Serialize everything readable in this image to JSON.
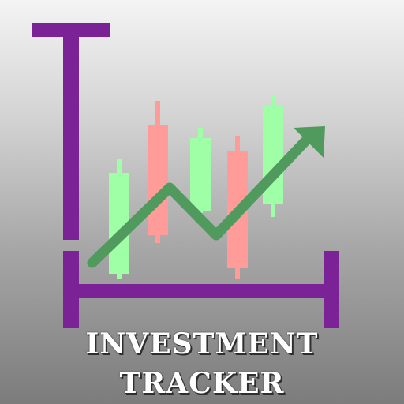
{
  "title": {
    "line1": "INVESTMENT",
    "line2": "TRACKER"
  },
  "colors": {
    "axis": "#7b2296",
    "candle_up": "#9effa6",
    "candle_down": "#ff9c99",
    "arrow": "#519a5e",
    "text": "#ffffff"
  },
  "candles": [
    {
      "direction": "up"
    },
    {
      "direction": "down"
    },
    {
      "direction": "up"
    },
    {
      "direction": "down"
    },
    {
      "direction": "up"
    }
  ],
  "icons": {
    "axis": "chart-axes-icon",
    "arrow": "trend-arrow-icon"
  }
}
